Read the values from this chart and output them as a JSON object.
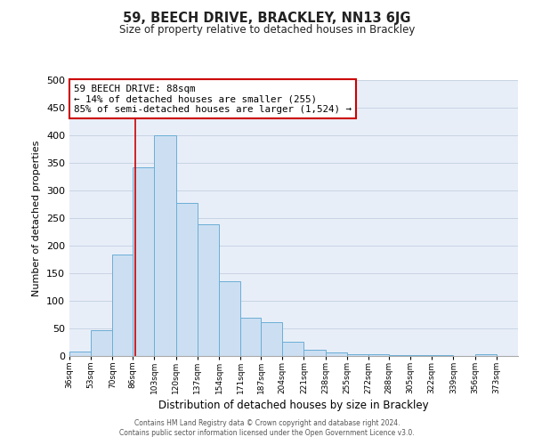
{
  "title": "59, BEECH DRIVE, BRACKLEY, NN13 6JG",
  "subtitle": "Size of property relative to detached houses in Brackley",
  "xlabel": "Distribution of detached houses by size in Brackley",
  "ylabel": "Number of detached properties",
  "bin_labels": [
    "36sqm",
    "53sqm",
    "70sqm",
    "86sqm",
    "103sqm",
    "120sqm",
    "137sqm",
    "154sqm",
    "171sqm",
    "187sqm",
    "204sqm",
    "221sqm",
    "238sqm",
    "255sqm",
    "272sqm",
    "288sqm",
    "305sqm",
    "322sqm",
    "339sqm",
    "356sqm",
    "373sqm"
  ],
  "bin_edges": [
    36,
    53,
    70,
    86,
    103,
    120,
    137,
    154,
    171,
    187,
    204,
    221,
    238,
    255,
    272,
    288,
    305,
    322,
    339,
    356,
    373,
    390
  ],
  "bar_heights": [
    8,
    46,
    184,
    342,
    400,
    278,
    238,
    135,
    70,
    61,
    26,
    12,
    6,
    4,
    3,
    2,
    1,
    1,
    0,
    4,
    0
  ],
  "bar_color": "#ccdff2",
  "bar_edge_color": "#6aaed6",
  "property_line_x": 88,
  "property_line_color": "#cc0000",
  "annotation_line1": "59 BEECH DRIVE: 88sqm",
  "annotation_line2": "← 14% of detached houses are smaller (255)",
  "annotation_line3": "85% of semi-detached houses are larger (1,524) →",
  "annotation_box_color": "#cc0000",
  "ylim": [
    0,
    500
  ],
  "yticks": [
    0,
    50,
    100,
    150,
    200,
    250,
    300,
    350,
    400,
    450,
    500
  ],
  "grid_color": "#c8d4e4",
  "background_color": "#e8eef8",
  "footer_line1": "Contains HM Land Registry data © Crown copyright and database right 2024.",
  "footer_line2": "Contains public sector information licensed under the Open Government Licence v3.0."
}
